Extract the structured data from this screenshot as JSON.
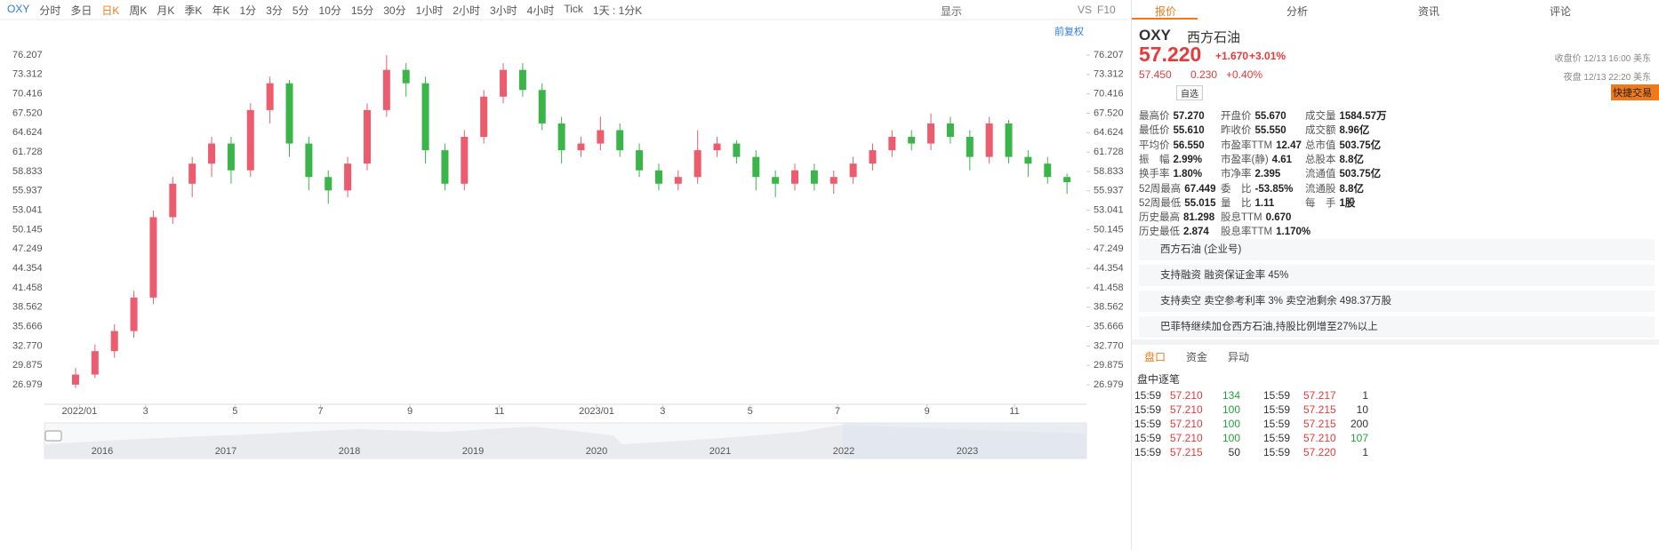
{
  "toolbar": {
    "symbol": "OXY",
    "periods": [
      "分时",
      "多日",
      "日K",
      "周K",
      "月K",
      "季K",
      "年K",
      "1分",
      "3分",
      "5分",
      "10分",
      "15分",
      "30分",
      "1小时",
      "2小时",
      "3小时",
      "4小时",
      "Tick",
      "1天 : 1分K"
    ],
    "right": [
      "显示",
      "VS",
      "F10"
    ],
    "adjust": "前复权"
  },
  "chart_data": {
    "type": "candlestick",
    "up_color": "#ec5b6e",
    "down_color": "#3bb54a",
    "xlim": [
      -1.6,
      52
    ],
    "xticks": [
      {
        "value": 0.2,
        "label": "2022/01"
      },
      {
        "value": 3.6,
        "label": "3"
      },
      {
        "value": 8.2,
        "label": "5"
      },
      {
        "value": 12.6,
        "label": "7"
      },
      {
        "value": 17.2,
        "label": "9"
      },
      {
        "value": 21.8,
        "label": "11"
      },
      {
        "value": 26.8,
        "label": "2023/01"
      },
      {
        "value": 30.2,
        "label": "3"
      },
      {
        "value": 34.7,
        "label": "5"
      },
      {
        "value": 39.2,
        "label": "7"
      },
      {
        "value": 43.8,
        "label": "9"
      },
      {
        "value": 48.3,
        "label": "11"
      }
    ],
    "ylim": [
      24.06,
      81.12
    ],
    "yticks": [
      76.207,
      73.312,
      70.416,
      {
        "value": 67.52,
        "label": "67.520"
      },
      64.624,
      61.728,
      58.833,
      55.937,
      53.041,
      50.145,
      47.249,
      44.354,
      41.458,
      38.562,
      35.666,
      {
        "value": 32.77,
        "label": "32.770"
      },
      29.875,
      26.979
    ],
    "candles": [
      [
        27,
        29.5,
        26.5,
        28.5
      ],
      [
        28.5,
        33,
        28,
        32
      ],
      [
        32,
        36,
        31,
        35
      ],
      [
        35,
        41,
        34,
        40
      ],
      [
        40,
        53,
        39,
        52
      ],
      [
        52,
        58,
        51,
        57
      ],
      [
        57,
        61,
        55,
        60
      ],
      [
        60,
        64,
        58,
        63
      ],
      [
        63,
        64,
        57,
        59
      ],
      [
        59,
        69,
        58,
        68
      ],
      [
        68,
        73,
        66,
        72
      ],
      [
        72,
        72.5,
        61,
        63
      ],
      [
        63,
        64,
        56,
        58
      ],
      [
        58,
        59,
        54,
        56
      ],
      [
        56,
        61,
        55,
        60
      ],
      [
        60,
        69,
        59,
        68
      ],
      [
        68,
        76.2,
        67,
        74
      ],
      [
        74,
        75,
        70,
        72
      ],
      [
        72,
        73,
        60,
        62
      ],
      [
        62,
        63,
        56,
        57
      ],
      [
        57,
        65,
        56,
        64
      ],
      [
        64,
        71,
        63,
        70
      ],
      [
        70,
        75,
        69,
        74
      ],
      [
        74,
        75,
        70,
        71
      ],
      [
        71,
        72,
        65,
        66
      ],
      [
        66,
        67,
        60,
        62
      ],
      [
        62,
        64,
        61,
        63
      ],
      [
        63,
        67,
        62,
        65
      ],
      [
        65,
        66,
        61,
        62
      ],
      [
        62,
        63,
        58,
        59
      ],
      [
        59,
        60,
        56,
        57
      ],
      [
        57,
        59,
        56,
        58
      ],
      [
        58,
        65,
        57,
        62
      ],
      [
        62,
        64,
        61,
        63
      ],
      [
        63,
        63.5,
        60,
        61
      ],
      [
        61,
        62,
        56,
        58
      ],
      [
        58,
        59,
        55,
        57
      ],
      [
        57,
        60,
        56,
        59
      ],
      [
        59,
        60,
        56,
        57
      ],
      [
        57,
        59,
        55.5,
        58
      ],
      [
        58,
        61,
        57,
        60
      ],
      [
        60,
        63,
        59,
        62
      ],
      [
        62,
        65,
        61,
        64
      ],
      [
        64,
        65,
        62,
        63
      ],
      [
        63,
        67.5,
        62,
        66
      ],
      [
        66,
        67,
        63,
        64
      ],
      [
        64,
        65,
        59,
        61
      ],
      [
        61,
        67,
        60,
        66
      ],
      [
        66,
        66.5,
        60,
        61
      ],
      [
        61,
        62,
        58,
        60
      ],
      [
        60,
        61,
        57,
        58
      ],
      [
        58,
        58.5,
        55.5,
        57.22
      ]
    ]
  },
  "navigator": {
    "years": [
      "2016",
      "2017",
      "2018",
      "2019",
      "2020",
      "2021",
      "2022",
      "2023"
    ]
  },
  "panel": {
    "tabs": [
      "报价",
      "分析",
      "资讯",
      "评论"
    ],
    "code": "OXY",
    "name": "西方石油",
    "price": "57.220",
    "change": "+1.670",
    "pct": "+3.01%",
    "close_note": "收盘价 12/13 16:00 美东",
    "night_price": "57.450",
    "night_change": "0.230",
    "night_pct": "+0.40%",
    "night_note": "夜盘 12/13 22:20 美东",
    "watch": "自选",
    "trade": "快捷交易",
    "stats": [
      [
        "最高价",
        "57.270",
        "开盘价",
        "55.670",
        "成交量",
        "1584.57万"
      ],
      [
        "最低价",
        "55.610",
        "昨收价",
        "55.550",
        "成交额",
        "8.96亿"
      ],
      [
        "平均价",
        "56.550",
        "市盈率TTM",
        "12.47",
        "总市值",
        "503.75亿"
      ],
      [
        "振　幅",
        "2.99%",
        "市盈率(静)",
        "4.61",
        "总股本",
        "8.8亿"
      ],
      [
        "换手率",
        "1.80%",
        "市净率",
        "2.395",
        "流通值",
        "503.75亿"
      ],
      [
        "52周最高",
        "67.449",
        "委　比",
        "-53.85%",
        "流通股",
        "8.8亿"
      ],
      [
        "52周最低",
        "55.015",
        "量　比",
        "1.11",
        "每　手",
        "1股"
      ],
      [
        "历史最高",
        "81.298",
        "股息TTM",
        "0.670"
      ],
      [
        "历史最低",
        "2.874",
        "股息率TTM",
        "1.170%"
      ]
    ],
    "info": [
      "西方石油 (企业号)",
      "支持融资 融资保证金率 45%",
      "支持卖空 卖空参考利率 3% 卖空池剩余 498.37万股",
      "巴菲特继续加仓西方石油,持股比例增至27%以上"
    ],
    "bottom_tabs": [
      "盘口",
      "资金",
      "异动"
    ],
    "ticker_title": "盘中逐笔",
    "trades": [
      [
        "15:59",
        "57.210",
        "134",
        "15:59",
        "57.217",
        "1"
      ],
      [
        "15:59",
        "57.210",
        "100",
        "15:59",
        "57.215",
        "10"
      ],
      [
        "15:59",
        "57.210",
        "100",
        "15:59",
        "57.215",
        "200"
      ],
      [
        "15:59",
        "57.210",
        "100",
        "15:59",
        "57.210",
        "107"
      ],
      [
        "15:59",
        "57.215",
        "50",
        "15:59",
        "57.220",
        "1"
      ]
    ]
  }
}
